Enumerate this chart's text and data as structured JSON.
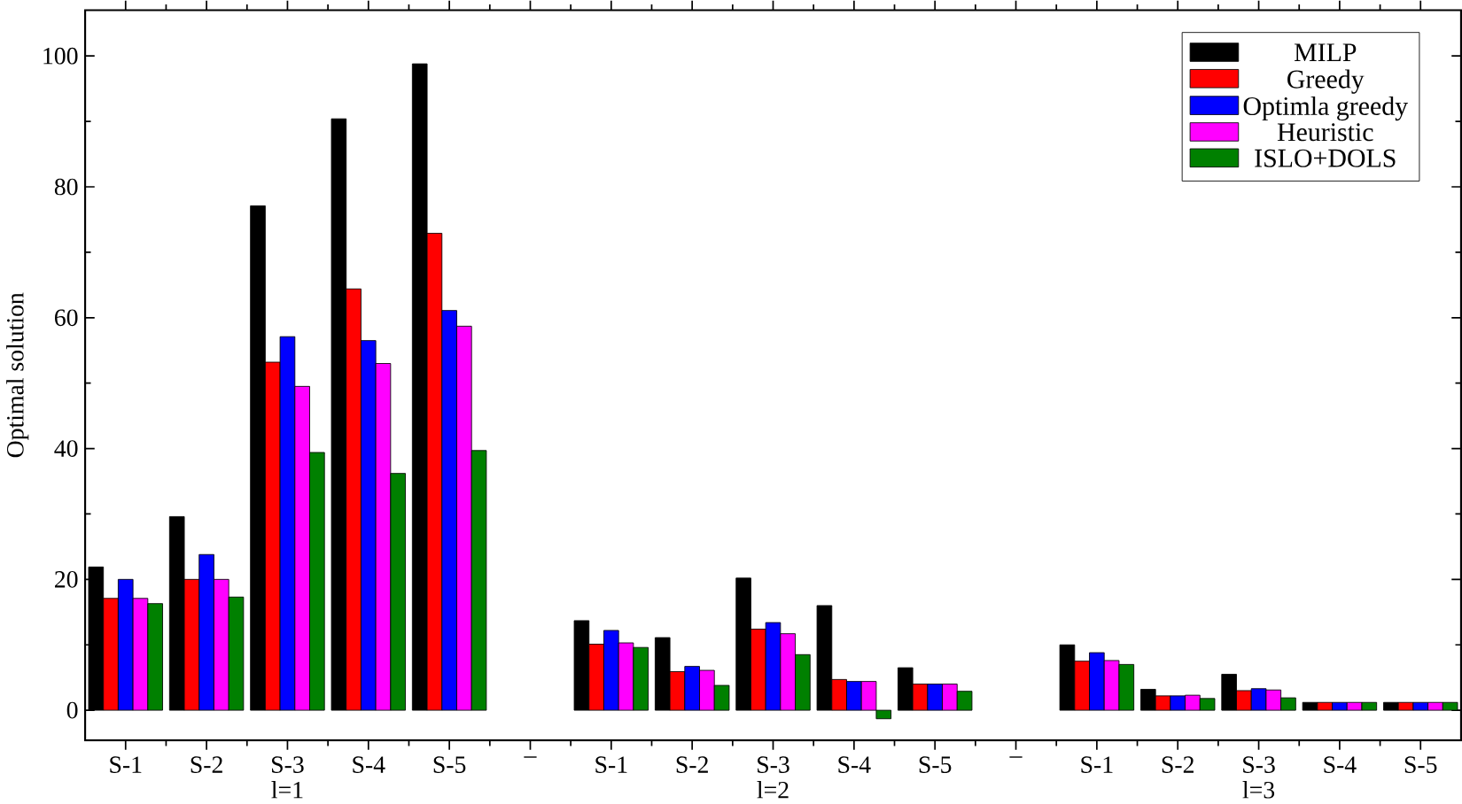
{
  "chart_data": {
    "type": "bar",
    "ylabel": "Optimal solution",
    "categories": [
      "S-1",
      "S-2",
      "S-3",
      "S-4",
      "S-5",
      "–",
      "S-1",
      "S-2",
      "S-3",
      "S-4",
      "S-5",
      "–",
      "S-1",
      "S-2",
      "S-3",
      "S-4",
      "S-5"
    ],
    "series": [
      {
        "name": "MILP",
        "color": "#000000",
        "values": [
          21.9,
          29.6,
          77.1,
          90.4,
          98.8,
          null,
          13.7,
          11.1,
          20.2,
          16.0,
          6.5,
          null,
          10.0,
          3.2,
          5.5,
          1.2,
          1.2
        ]
      },
      {
        "name": "Greedy",
        "color": "#ff0000",
        "values": [
          17.1,
          20.0,
          53.2,
          64.4,
          72.9,
          null,
          10.1,
          5.9,
          12.4,
          4.7,
          4.0,
          null,
          7.5,
          2.2,
          3.0,
          1.2,
          1.2
        ]
      },
      {
        "name": "Optimla greedy",
        "color": "#0000ff",
        "values": [
          20.0,
          23.8,
          57.1,
          56.5,
          61.1,
          null,
          12.2,
          6.7,
          13.4,
          4.4,
          4.0,
          null,
          8.8,
          2.2,
          3.3,
          1.2,
          1.2
        ]
      },
      {
        "name": "Heuristic",
        "color": "#ff00ff",
        "values": [
          17.1,
          20.0,
          49.5,
          53.0,
          58.7,
          null,
          10.3,
          6.1,
          11.7,
          4.4,
          4.0,
          null,
          7.6,
          2.3,
          3.1,
          1.2,
          1.2
        ]
      },
      {
        "name": "ISLO+DOLS",
        "color": "#008000",
        "values": [
          16.3,
          17.3,
          39.4,
          36.2,
          39.7,
          null,
          9.6,
          3.8,
          8.5,
          -1.3,
          2.9,
          null,
          7.0,
          1.8,
          1.9,
          1.2,
          1.2
        ]
      }
    ],
    "ylim": [
      -4.6,
      107
    ],
    "yticks": [
      0,
      20,
      40,
      60,
      80,
      100
    ],
    "annotations": [
      "l=1",
      "l=2",
      "l=3"
    ],
    "legend": "top right",
    "grid": false
  }
}
